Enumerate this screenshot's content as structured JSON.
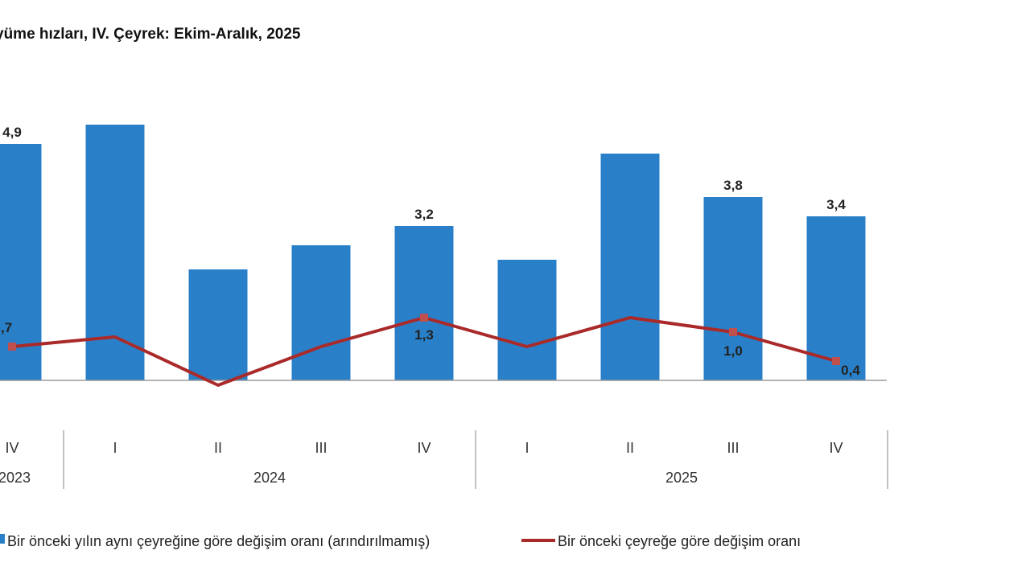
{
  "chart_data": {
    "type": "bar",
    "title": "yüme hızları, IV. Çeyrek: Ekim-Aralık, 2025",
    "categories": [
      "IV",
      "I",
      "II",
      "III",
      "IV",
      "I",
      "II",
      "III",
      "IV"
    ],
    "year_groups": [
      {
        "label": "2023",
        "count": 1
      },
      {
        "label": "2024",
        "count": 4
      },
      {
        "label": "2025",
        "count": 4
      }
    ],
    "series": [
      {
        "name": "Bir önceki yılın aynı çeyreğine göre değişim oranı (arındırılmamış)",
        "kind": "bar",
        "color": "#2980c8",
        "values": [
          4.9,
          5.3,
          2.3,
          2.8,
          3.2,
          2.5,
          4.7,
          3.8,
          3.4
        ],
        "labels": [
          "4,9",
          null,
          null,
          null,
          "3,2",
          null,
          null,
          "3,8",
          "3,4"
        ]
      },
      {
        "name": "Bir önceki çeyreğe göre değişim oranı",
        "kind": "line",
        "color": "#aa2a2a",
        "values": [
          0.7,
          0.9,
          -0.1,
          0.7,
          1.3,
          0.7,
          1.3,
          1.0,
          0.4
        ],
        "labels": [
          ",7",
          null,
          null,
          null,
          "1,3",
          null,
          null,
          "1,0",
          "0,4"
        ]
      }
    ],
    "ylim": [
      -0.3,
      5.6
    ],
    "legend_position": "bottom",
    "grid": false
  }
}
